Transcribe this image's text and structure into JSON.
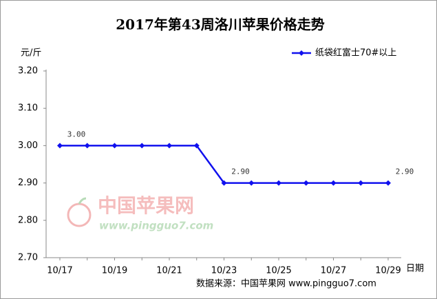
{
  "chart_data": {
    "type": "line",
    "title": "2017年第43周洛川苹果价格走势",
    "y_label": "元/斤",
    "x_label": "日期",
    "source": "数据来源：中国苹果网 www.pingguo7.com",
    "watermark": "中国苹果网",
    "watermark_url": "www.pingguo7.com",
    "categories": [
      "10/17",
      null,
      "10/19",
      null,
      "10/21",
      null,
      "10/23",
      null,
      "10/25",
      null,
      "10/27",
      null,
      "10/29"
    ],
    "series": [
      {
        "name": "纸袋红富士70#以上",
        "color": "#1010ee",
        "values": [
          3.0,
          3.0,
          3.0,
          3.0,
          3.0,
          3.0,
          2.9,
          2.9,
          2.9,
          2.9,
          2.9,
          2.9,
          2.9
        ],
        "value_labels": [
          "3.00",
          null,
          null,
          null,
          null,
          null,
          "2.90",
          null,
          null,
          null,
          null,
          null,
          "2.90"
        ]
      }
    ],
    "ylim": [
      2.7,
      3.2
    ],
    "yticks": [
      {
        "value": 2.7,
        "label": "2.70"
      },
      {
        "value": 2.8,
        "label": "2.80"
      },
      {
        "value": 2.9,
        "label": "2.90"
      },
      {
        "value": 3.0,
        "label": "3.00"
      },
      {
        "value": 3.1,
        "label": "3.10"
      },
      {
        "value": 3.2,
        "label": "3.20"
      }
    ],
    "legend": "top-right"
  }
}
